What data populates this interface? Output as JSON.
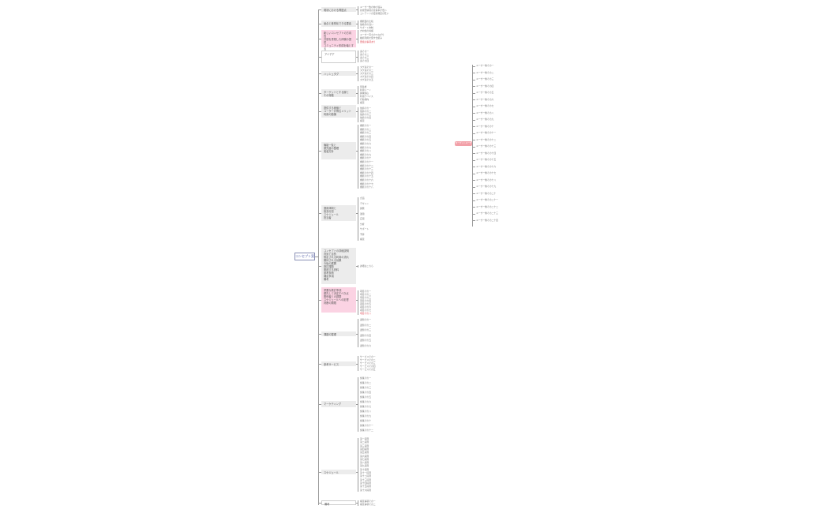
{
  "root": {
    "label": "コンセプト案"
  },
  "right_node": {
    "label": "ターゲットユーザー"
  },
  "branches": [
    {
      "label": "現状における問題点",
      "style": "gray",
      "children": [
        "ユーザー数の伸び悩み",
        "新規登録者の定着率が低い",
        "コンテンツの更新頻度が低い"
      ]
    },
    {
      "label": "競合と差別化できる要素",
      "style": "gray",
      "children": [
        "機能面の比較",
        "価格帯の違い",
        "サポート体制"
      ]
    },
    {
      "label": "新しいコンセプトの方向性\n共感を重視した体験の提供\nコミュニティ形成を軸とする",
      "style": "pink",
      "children": [
        "方向性の候補",
        "ユーザー同士のつながり",
        "継続利用を促す仕組み",
        "要検討事項あり"
      ]
    },
    {
      "label": "アイデア",
      "style": "plain",
      "children": [
        "案その一",
        "案その二",
        "案その三",
        "案その四"
      ]
    },
    {
      "label": "ハッシュタグ",
      "style": "gray",
      "children": [
        "タグ案その一",
        "タグ案その二",
        "タグ案その三",
        "タグ案その四",
        "タグ案その五"
      ]
    },
    {
      "label": "ターゲットとする層と\nその特徴",
      "style": "gray",
      "children": [
        "年齢層",
        "利用シーン",
        "興味関心",
        "利用デバイス",
        "行動傾向",
        "補足"
      ]
    },
    {
      "label": "提供する価値と\nユーザーが得るメリット\n利用の動機",
      "style": "gray",
      "children": [
        "価値その一",
        "価値その二",
        "価値その三",
        "価値その四",
        "補足"
      ]
    },
    {
      "label": "機能一覧と\n優先度の整理\n実装方針",
      "style": "gray",
      "children": [
        "機能その一",
        "機能その二",
        "機能その三",
        "機能その四",
        "機能その五",
        "機能その六",
        "機能その七",
        "機能その八",
        "機能その九",
        "機能その十",
        "機能その十一",
        "機能その十二",
        "機能その十三",
        "機能その十四",
        "機能その十五",
        "機能その十六",
        "機能その十七",
        "機能その十八"
      ]
    },
    {
      "label": "運用体制と\n役割分担\nスケジュール\n担当者",
      "style": "gray",
      "children": [
        "企画",
        "デザイン",
        "開発",
        "運用",
        "広報",
        "分析",
        "サポート",
        "予算",
        "補足"
      ]
    },
    {
      "label": "コンセプトの詳細説明\n背景と目的\n想定される利用の流れ\n期待される効果\n今後の展開\n検討課題\n関連する資料\n参考事例\n補足事項\n備考",
      "style": "gray",
      "children": [
        "詳細はこちら"
      ]
    },
    {
      "label": "重要な検討事項\n優先して決定すべき点\n関係者との調整\nスケジュールへの影響\n判断の期限",
      "style": "pink",
      "children": [
        "項目その一",
        "項目その二",
        "項目その三",
        "項目その四",
        "項目その五",
        "項目その六",
        "項目その七",
        "項目その八"
      ]
    },
    {
      "label": "課題の整理",
      "style": "gray",
      "children": [
        "課題その一",
        "課題その二",
        "課題その三",
        "課題その四",
        "課題その五",
        "課題その六"
      ]
    },
    {
      "label": "参考サービス",
      "style": "gray",
      "children": [
        "サービスその一",
        "サービスその二",
        "サービスその三",
        "サービスその四",
        "サービスその五"
      ]
    },
    {
      "label": "マーケティング",
      "style": "gray",
      "children": [
        "施策その一",
        "施策その二",
        "施策その三",
        "施策その四",
        "施策その五",
        "施策その六",
        "施策その七",
        "施策その八",
        "施策その九",
        "施策その十",
        "施策その十一",
        "施策その十二"
      ]
    },
    {
      "label": "スケジュール",
      "style": "gray",
      "children": [
        "第一段階",
        "第二段階",
        "第三段階",
        "第四段階",
        "第五段階",
        "第六段階",
        "第七段階",
        "第八段階",
        "第九段階",
        "第十段階",
        "第十一段階",
        "第十二段階",
        "第十三段階",
        "第十四段階",
        "第十五段階",
        "第十六段階"
      ]
    },
    {
      "label": "備考",
      "style": "plain",
      "children": [
        "補足事項その一",
        "補足事項その二"
      ]
    }
  ],
  "right_children": [
    "ユーザー像その一",
    "ユーザー像その二",
    "ユーザー像その三",
    "ユーザー像その四",
    "ユーザー像その五",
    "ユーザー像その六",
    "ユーザー像その七",
    "ユーザー像その八",
    "ユーザー像その九",
    "ユーザー像その十",
    "ユーザー像その十一",
    "ユーザー像その十二",
    "ユーザー像その十三",
    "ユーザー像その十四",
    "ユーザー像その十五",
    "ユーザー像その十六",
    "ユーザー像その十七",
    "ユーザー像その十八",
    "ユーザー像その十九",
    "ユーザー像その二十",
    "ユーザー像その二十一",
    "ユーザー像その二十二",
    "ユーザー像その二十三",
    "ユーザー像その二十四"
  ],
  "colors": {
    "pink": "#fbd3e3",
    "gray": "#ececec",
    "root_border": "#8a8fb5",
    "accent": "#f2a0a8"
  }
}
